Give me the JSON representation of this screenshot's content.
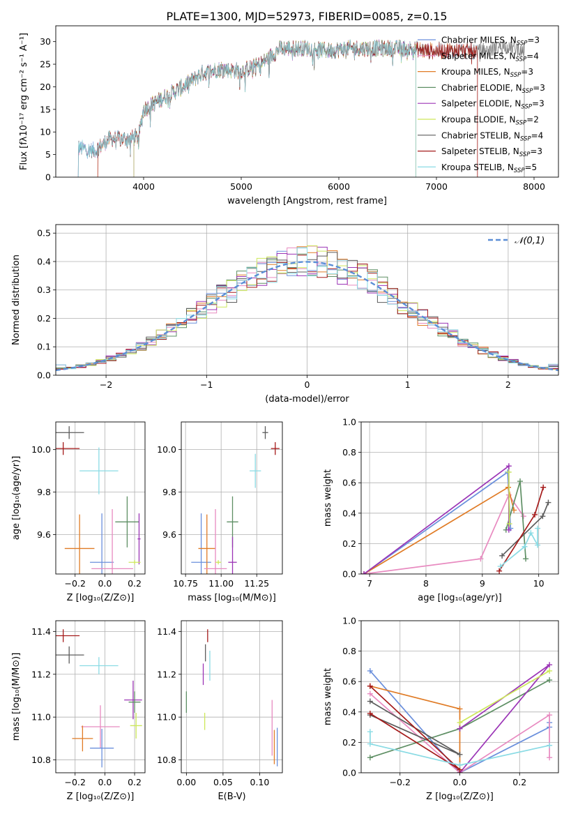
{
  "figure_title": "PLATE=1300, MJD=52973, FIBERID=0085, z=0.15",
  "colors": {
    "chabrier_miles": "#6a8fdc",
    "salpeter_miles": "#e88ac0",
    "kroupa_miles": "#e07b25",
    "chabrier_elodie": "#5e8f64",
    "salpeter_elodie": "#9b34b6",
    "kroupa_elodie": "#cde85a",
    "chabrier_stelib": "#5c5c5c",
    "salpeter_stelib": "#a51b1b",
    "kroupa_stelib": "#8adbe4",
    "gaussian": "#5b8ed6",
    "grid": "#b0b0b0"
  },
  "chart_data": [
    {
      "id": "spectrum",
      "type": "line",
      "xlabel": "wavelength [Angstrom, rest frame]",
      "ylabel": "Flux [fλ10⁻¹⁷ erg cm⁻² s⁻¹ A⁻¹]",
      "xlim": [
        3100,
        8250
      ],
      "ylim": [
        0,
        33.5
      ],
      "xticks": [
        4000,
        5000,
        6000,
        7000,
        8000
      ],
      "yticks": [
        0,
        5,
        10,
        15,
        20,
        25,
        30
      ],
      "grid": false,
      "legend": "top-right",
      "continuum": [
        [
          3330,
          6.5
        ],
        [
          3500,
          5.8
        ],
        [
          3650,
          8.5
        ],
        [
          3850,
          8.5
        ],
        [
          3950,
          9
        ],
        [
          4000,
          15
        ],
        [
          4200,
          17.5
        ],
        [
          4400,
          20
        ],
        [
          4600,
          23
        ],
        [
          4800,
          24
        ],
        [
          5000,
          23.5
        ],
        [
          5200,
          25
        ],
        [
          5400,
          28.5
        ],
        [
          5700,
          28.5
        ],
        [
          5900,
          28
        ],
        [
          6100,
          28.5
        ],
        [
          6300,
          28.5
        ],
        [
          6500,
          28.5
        ],
        [
          6700,
          28.5
        ],
        [
          6900,
          28
        ],
        [
          7100,
          28
        ],
        [
          7300,
          28
        ],
        [
          7500,
          28
        ],
        [
          7700,
          29
        ],
        [
          7900,
          28
        ]
      ],
      "series": [
        {
          "name": "Chabrier MILES, N_SSP=3",
          "key": "chabrier_miles",
          "x_range": [
            3330,
            7420
          ]
        },
        {
          "name": "Salpeter MILES, N_SSP=4",
          "key": "salpeter_miles",
          "x_range": [
            3330,
            7420
          ]
        },
        {
          "name": "Kroupa MILES, N_SSP=3",
          "key": "kroupa_miles",
          "x_range": [
            3530,
            7420
          ]
        },
        {
          "name": "Chabrier ELODIE, N_SSP=3",
          "key": "chabrier_elodie",
          "x_range": [
            3900,
            6790
          ]
        },
        {
          "name": "Salpeter ELODIE, N_SSP=3",
          "key": "salpeter_elodie",
          "x_range": [
            3900,
            6790
          ]
        },
        {
          "name": "Kroupa ELODIE, N_SSP=2",
          "key": "kroupa_elodie",
          "x_range": [
            3900,
            6790
          ]
        },
        {
          "name": "Chabrier STELIB, N_SSP=4",
          "key": "chabrier_stelib",
          "x_range": [
            3330,
            7900
          ]
        },
        {
          "name": "Salpeter STELIB, N_SSP=3",
          "key": "salpeter_stelib",
          "x_range": [
            3530,
            7420
          ]
        },
        {
          "name": "Kroupa STELIB, N_SSP=5",
          "key": "kroupa_stelib",
          "x_range": [
            3330,
            6790
          ]
        }
      ]
    },
    {
      "id": "residuals",
      "type": "line",
      "xlabel": "(data-model)/error",
      "ylabel": "Normed distribution",
      "xlim": [
        -2.5,
        2.5
      ],
      "ylim": [
        0,
        0.53
      ],
      "xticks": [
        -2,
        -1,
        0,
        1,
        2
      ],
      "yticks": [
        0.0,
        0.1,
        0.2,
        0.3,
        0.4,
        0.5
      ],
      "grid": true,
      "legend": "top-right",
      "gaussian_label": "𝒩(0,1)",
      "histogram_bin_width": 0.1,
      "series_keys": [
        "chabrier_miles",
        "salpeter_miles",
        "kroupa_miles",
        "chabrier_elodie",
        "salpeter_elodie",
        "kroupa_elodie",
        "chabrier_stelib",
        "salpeter_stelib",
        "kroupa_stelib"
      ]
    },
    {
      "id": "age_vs_Z",
      "type": "scatter",
      "xlabel": "Z [log₁₀(Z/Z⊙)]",
      "ylabel": "age  [log₁₀(age/yr)]",
      "xlim": [
        -0.33,
        0.27
      ],
      "ylim": [
        9.415,
        10.13
      ],
      "xticks": [
        -0.2,
        0.0,
        0.2
      ],
      "xticklabels": [
        "−0.2",
        "0.0",
        "0.2"
      ],
      "yticks": [
        9.6,
        9.8,
        10.0
      ],
      "grid": true,
      "points": [
        {
          "key": "chabrier_stelib",
          "x": -0.24,
          "xerr": 0.1,
          "y": 10.08,
          "yerr": 0.03
        },
        {
          "key": "salpeter_stelib",
          "x": -0.28,
          "xerr": 0.11,
          "y": 10.005,
          "yerr": 0.03
        },
        {
          "key": "kroupa_stelib",
          "x": -0.04,
          "xerr": 0.13,
          "y": 9.9,
          "yerr": 0.11
        },
        {
          "key": "chabrier_miles",
          "x": -0.02,
          "xerr": 0.08,
          "y": 9.47,
          "yerr": 0.23
        },
        {
          "key": "kroupa_miles",
          "x": -0.17,
          "xerr": 0.1,
          "y": 9.535,
          "yerr": 0.16
        },
        {
          "key": "salpeter_miles",
          "x": 0.05,
          "xerr": 0.14,
          "y": 9.44,
          "yerr": 0.28
        },
        {
          "key": "chabrier_elodie",
          "x": 0.15,
          "xerr": 0.08,
          "y": 9.66,
          "yerr": 0.12
        },
        {
          "key": "salpeter_elodie",
          "x": 0.23,
          "xerr": 0.01,
          "y": 9.58,
          "yerr": 0.12
        },
        {
          "key": "kroupa_elodie",
          "x": 0.2,
          "xerr": 0.04,
          "y": 9.47,
          "yerr": 0.01
        }
      ]
    },
    {
      "id": "age_vs_mass",
      "type": "scatter",
      "xlabel": "mass [log₁₀(M/M⊙)]",
      "ylabel": "",
      "xlim": [
        10.72,
        11.43
      ],
      "ylim": [
        9.415,
        10.13
      ],
      "xticks": [
        10.75,
        11.0,
        11.25
      ],
      "xticklabels": [
        "10.75",
        "11.00",
        "11.25"
      ],
      "yticks": [
        9.6,
        9.8,
        10.0
      ],
      "grid": true,
      "points": [
        {
          "key": "chabrier_stelib",
          "x": 11.31,
          "xerr": 0.02,
          "y": 10.08,
          "yerr": 0.03
        },
        {
          "key": "salpeter_stelib",
          "x": 11.38,
          "xerr": 0.03,
          "y": 10.005,
          "yerr": 0.03
        },
        {
          "key": "kroupa_stelib",
          "x": 11.24,
          "xerr": 0.04,
          "y": 9.9,
          "yerr": 0.08
        },
        {
          "key": "chabrier_miles",
          "x": 10.86,
          "xerr": 0.07,
          "y": 9.47,
          "yerr": 0.23
        },
        {
          "key": "kroupa_miles",
          "x": 10.9,
          "xerr": 0.06,
          "y": 9.535,
          "yerr": 0.16
        },
        {
          "key": "salpeter_miles",
          "x": 10.96,
          "xerr": 0.08,
          "y": 9.44,
          "yerr": 0.28
        },
        {
          "key": "chabrier_elodie",
          "x": 11.08,
          "xerr": 0.04,
          "y": 9.66,
          "yerr": 0.12
        },
        {
          "key": "salpeter_elodie",
          "x": 11.08,
          "xerr": 0.03,
          "y": 9.47,
          "yerr": 0.12
        },
        {
          "key": "kroupa_elodie",
          "x": 10.98,
          "xerr": 0.02,
          "y": 9.47,
          "yerr": 0.01
        }
      ]
    },
    {
      "id": "weight_vs_age",
      "type": "line",
      "xlabel": "age  [log₁₀(age/yr)]",
      "ylabel": "mass weight",
      "xlim": [
        6.85,
        10.35
      ],
      "ylim": [
        0,
        1
      ],
      "xticks": [
        7,
        8,
        9,
        10
      ],
      "yticks": [
        0.0,
        0.2,
        0.4,
        0.6,
        0.8,
        1.0
      ],
      "grid": true,
      "series": [
        {
          "key": "chabrier_miles",
          "x": [
            6.9,
            9.45,
            9.5
          ],
          "y": [
            0.0,
            0.67,
            0.3
          ]
        },
        {
          "key": "salpeter_miles",
          "x": [
            6.9,
            8.97,
            9.47,
            9.73
          ],
          "y": [
            0.0,
            0.1,
            0.52,
            0.38
          ]
        },
        {
          "key": "kroupa_miles",
          "x": [
            6.9,
            9.46,
            9.56
          ],
          "y": [
            0.0,
            0.57,
            0.42
          ]
        },
        {
          "key": "chabrier_elodie",
          "x": [
            9.42,
            9.67,
            9.77
          ],
          "y": [
            0.29,
            0.61,
            0.1
          ]
        },
        {
          "key": "salpeter_elodie",
          "x": [
            6.9,
            9.47,
            9.47
          ],
          "y": [
            0.0,
            0.71,
            0.29
          ]
        },
        {
          "key": "kroupa_elodie",
          "x": [
            9.47,
            9.48
          ],
          "y": [
            0.67,
            0.33
          ]
        },
        {
          "key": "chabrier_stelib",
          "x": [
            9.35,
            10.07,
            10.17
          ],
          "y": [
            0.12,
            0.38,
            0.47
          ]
        },
        {
          "key": "salpeter_stelib",
          "x": [
            9.3,
            9.93,
            10.08
          ],
          "y": [
            0.02,
            0.39,
            0.57
          ]
        },
        {
          "key": "kroupa_stelib",
          "x": [
            9.32,
            9.75,
            9.86,
            9.98,
            9.98
          ],
          "y": [
            0.05,
            0.18,
            0.27,
            0.19,
            0.3
          ]
        }
      ]
    },
    {
      "id": "mass_vs_Z",
      "type": "scatter",
      "xlabel": "Z [log₁₀(Z/Z⊙)]",
      "ylabel": "mass [log₁₀(M/M⊙)]",
      "xlim": [
        -0.33,
        0.27
      ],
      "ylim": [
        10.74,
        11.45
      ],
      "xticks": [
        -0.2,
        0.0,
        0.2
      ],
      "xticklabels": [
        "−0.2",
        "0.0",
        "0.2"
      ],
      "yticks": [
        10.8,
        11.0,
        11.2,
        11.4
      ],
      "grid": true,
      "points": [
        {
          "key": "salpeter_stelib",
          "x": -0.28,
          "xerr": 0.11,
          "y": 11.38,
          "yerr": 0.03
        },
        {
          "key": "chabrier_stelib",
          "x": -0.24,
          "xerr": 0.1,
          "y": 11.29,
          "yerr": 0.04
        },
        {
          "key": "kroupa_stelib",
          "x": -0.04,
          "xerr": 0.13,
          "y": 11.24,
          "yerr": 0.04
        },
        {
          "key": "salpeter_elodie",
          "x": 0.19,
          "xerr": 0.06,
          "y": 11.08,
          "yerr": 0.09
        },
        {
          "key": "chabrier_elodie",
          "x": 0.2,
          "xerr": 0.04,
          "y": 11.07,
          "yerr": 0.05
        },
        {
          "key": "kroupa_elodie",
          "x": 0.21,
          "xerr": 0.04,
          "y": 10.96,
          "yerr": 0.06
        },
        {
          "key": "salpeter_miles",
          "x": -0.03,
          "xerr": 0.13,
          "y": 10.955,
          "yerr": 0.1
        },
        {
          "key": "kroupa_miles",
          "x": -0.15,
          "xerr": 0.07,
          "y": 10.9,
          "yerr": 0.06
        },
        {
          "key": "chabrier_miles",
          "x": -0.02,
          "xerr": 0.08,
          "y": 10.855,
          "yerr": 0.09
        }
      ]
    },
    {
      "id": "mass_vs_ebv",
      "type": "scatter",
      "xlabel": "E(B-V)",
      "ylabel": "",
      "xlim": [
        -0.007,
        0.131
      ],
      "ylim": [
        10.74,
        11.45
      ],
      "xticks": [
        0.0,
        0.05,
        0.1
      ],
      "xticklabels": [
        "0.00",
        "0.05",
        "0.10"
      ],
      "yticks": [
        10.8,
        11.0,
        11.2,
        11.4
      ],
      "grid": true,
      "points": [
        {
          "key": "salpeter_stelib",
          "x": 0.029,
          "xerr": 0,
          "y": 11.38,
          "yerr": 0.03
        },
        {
          "key": "chabrier_stelib",
          "x": 0.026,
          "xerr": 0,
          "y": 11.3,
          "yerr": 0.04
        },
        {
          "key": "kroupa_stelib",
          "x": 0.032,
          "xerr": 0,
          "y": 11.24,
          "yerr": 0.07
        },
        {
          "key": "salpeter_elodie",
          "x": 0.023,
          "xerr": 0,
          "y": 11.2,
          "yerr": 0.05
        },
        {
          "key": "chabrier_elodie",
          "x": 0.0,
          "xerr": 0,
          "y": 11.07,
          "yerr": 0.05
        },
        {
          "key": "kroupa_elodie",
          "x": 0.025,
          "xerr": 0,
          "y": 10.98,
          "yerr": 0.04
        },
        {
          "key": "salpeter_miles",
          "x": 0.117,
          "xerr": 0,
          "y": 10.95,
          "yerr": 0.13
        },
        {
          "key": "kroupa_miles",
          "x": 0.12,
          "xerr": 0,
          "y": 10.86,
          "yerr": 0.08
        },
        {
          "key": "chabrier_miles",
          "x": 0.124,
          "xerr": 0,
          "y": 10.86,
          "yerr": 0.09
        }
      ]
    },
    {
      "id": "weight_vs_Z",
      "type": "line",
      "xlabel": "Z [log₁₀(Z/Z⊙)]",
      "ylabel": "mass weight",
      "xlim": [
        -0.33,
        0.33
      ],
      "ylim": [
        0,
        1
      ],
      "xticks": [
        -0.2,
        0.0,
        0.2
      ],
      "xticklabels": [
        "−0.2",
        "0.0",
        "0.2"
      ],
      "yticks": [
        0.0,
        0.2,
        0.4,
        0.6,
        0.8,
        1.0
      ],
      "grid": true,
      "series": [
        {
          "key": "chabrier_miles",
          "x": [
            -0.3,
            0.0,
            0.3,
            0.3
          ],
          "y": [
            0.67,
            0.0,
            0.3,
            0.33
          ]
        },
        {
          "key": "salpeter_miles",
          "x": [
            -0.3,
            0.0,
            0.3,
            0.3
          ],
          "y": [
            0.52,
            0.0,
            0.38,
            0.1
          ]
        },
        {
          "key": "kroupa_miles",
          "x": [
            -0.3,
            0.0,
            0.0
          ],
          "y": [
            0.57,
            0.42,
            0.0
          ]
        },
        {
          "key": "chabrier_elodie",
          "x": [
            -0.3,
            0.0,
            0.3
          ],
          "y": [
            0.1,
            0.29,
            0.61
          ]
        },
        {
          "key": "salpeter_elodie",
          "x": [
            0.0,
            0.3,
            0.0
          ],
          "y": [
            0.29,
            0.71,
            0.0
          ]
        },
        {
          "key": "kroupa_elodie",
          "x": [
            0.0,
            0.3
          ],
          "y": [
            0.33,
            0.67
          ]
        },
        {
          "key": "chabrier_stelib",
          "x": [
            -0.3,
            0.0,
            -0.3
          ],
          "y": [
            0.47,
            0.12,
            0.38
          ]
        },
        {
          "key": "salpeter_stelib",
          "x": [
            -0.3,
            0.0,
            -0.3
          ],
          "y": [
            0.57,
            0.02,
            0.39
          ]
        },
        {
          "key": "kroupa_stelib",
          "x": [
            -0.3,
            -0.3,
            0.0,
            0.3
          ],
          "y": [
            0.27,
            0.19,
            0.05,
            0.18
          ]
        }
      ]
    }
  ]
}
